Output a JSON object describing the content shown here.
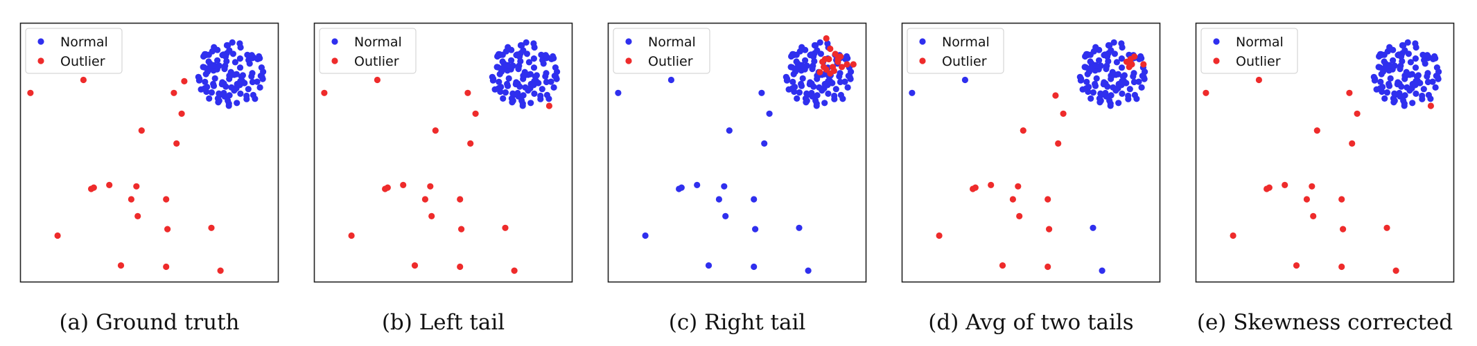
{
  "colors": {
    "normal": "#2f2fee",
    "outlier": "#ee2b2b",
    "frame": "#222222",
    "legend_border": "#cccccc"
  },
  "chart_data": [
    {
      "type": "scatter",
      "caption": "(a) Ground truth",
      "legend": [
        "Normal",
        "Outlier"
      ],
      "legend_position": "top-left",
      "xlim": [
        0,
        1
      ],
      "ylim": [
        0,
        1
      ],
      "axes_visible": false,
      "grid": false,
      "normal_cluster": {
        "center": [
          0.82,
          0.8
        ],
        "count": 110
      },
      "series": [
        {
          "name": "Outlier",
          "points": [
            [
              0.04,
              0.73
            ],
            [
              0.245,
              0.78
            ],
            [
              0.595,
              0.73
            ],
            [
              0.635,
              0.775
            ],
            [
              0.625,
              0.65
            ],
            [
              0.47,
              0.585
            ],
            [
              0.605,
              0.535
            ],
            [
              0.275,
              0.36
            ],
            [
              0.285,
              0.365
            ],
            [
              0.345,
              0.375
            ],
            [
              0.43,
              0.32
            ],
            [
              0.45,
              0.37
            ],
            [
              0.455,
              0.255
            ],
            [
              0.565,
              0.32
            ],
            [
              0.57,
              0.205
            ],
            [
              0.74,
              0.21
            ],
            [
              0.145,
              0.18
            ],
            [
              0.39,
              0.065
            ],
            [
              0.565,
              0.06
            ],
            [
              0.775,
              0.045
            ]
          ]
        }
      ]
    },
    {
      "type": "scatter",
      "caption": "(b) Left tail",
      "legend": [
        "Normal",
        "Outlier"
      ],
      "legend_position": "top-left",
      "xlim": [
        0,
        1
      ],
      "ylim": [
        0,
        1
      ],
      "axes_visible": false,
      "grid": false,
      "normal_cluster": {
        "center": [
          0.82,
          0.8
        ],
        "count": 110
      },
      "series": [
        {
          "name": "Outlier",
          "points": [
            [
              0.04,
              0.73
            ],
            [
              0.245,
              0.78
            ],
            [
              0.595,
              0.73
            ],
            [
              0.625,
              0.65
            ],
            [
              0.47,
              0.585
            ],
            [
              0.605,
              0.535
            ],
            [
              0.275,
              0.36
            ],
            [
              0.285,
              0.365
            ],
            [
              0.345,
              0.375
            ],
            [
              0.43,
              0.32
            ],
            [
              0.45,
              0.37
            ],
            [
              0.455,
              0.255
            ],
            [
              0.565,
              0.32
            ],
            [
              0.57,
              0.205
            ],
            [
              0.74,
              0.21
            ],
            [
              0.145,
              0.18
            ],
            [
              0.39,
              0.065
            ],
            [
              0.565,
              0.06
            ],
            [
              0.775,
              0.045
            ],
            [
              0.91,
              0.68
            ]
          ]
        }
      ]
    },
    {
      "type": "scatter",
      "caption": "(c) Right tail",
      "legend": [
        "Normal",
        "Outlier"
      ],
      "legend_position": "top-left",
      "xlim": [
        0,
        1
      ],
      "ylim": [
        0,
        1
      ],
      "axes_visible": false,
      "grid": false,
      "normal_cluster": {
        "center": [
          0.82,
          0.8
        ],
        "count": 110
      },
      "extra_normal": [
        [
          0.04,
          0.73
        ],
        [
          0.245,
          0.78
        ],
        [
          0.595,
          0.73
        ],
        [
          0.625,
          0.65
        ],
        [
          0.47,
          0.585
        ],
        [
          0.605,
          0.535
        ],
        [
          0.275,
          0.36
        ],
        [
          0.285,
          0.365
        ],
        [
          0.345,
          0.375
        ],
        [
          0.43,
          0.32
        ],
        [
          0.45,
          0.37
        ],
        [
          0.455,
          0.255
        ],
        [
          0.565,
          0.32
        ],
        [
          0.57,
          0.205
        ],
        [
          0.74,
          0.21
        ],
        [
          0.145,
          0.18
        ],
        [
          0.39,
          0.065
        ],
        [
          0.565,
          0.06
        ],
        [
          0.775,
          0.045
        ]
      ],
      "series": [
        {
          "name": "Outlier",
          "points": [
            [
              0.845,
              0.94
            ],
            [
              0.86,
              0.9
            ],
            [
              0.88,
              0.88
            ],
            [
              0.83,
              0.85
            ],
            [
              0.855,
              0.86
            ],
            [
              0.87,
              0.83
            ],
            [
              0.835,
              0.83
            ],
            [
              0.9,
              0.87
            ],
            [
              0.89,
              0.85
            ],
            [
              0.905,
              0.83
            ],
            [
              0.925,
              0.84
            ],
            [
              0.95,
              0.84
            ],
            [
              0.845,
              0.82
            ],
            [
              0.86,
              0.805
            ],
            [
              0.875,
              0.815
            ],
            [
              0.82,
              0.81
            ],
            [
              0.89,
              0.86
            ],
            [
              0.84,
              0.86
            ]
          ]
        }
      ]
    },
    {
      "type": "scatter",
      "caption": "(d) Avg of two tails",
      "legend": [
        "Normal",
        "Outlier"
      ],
      "legend_position": "top-left",
      "xlim": [
        0,
        1
      ],
      "ylim": [
        0,
        1
      ],
      "axes_visible": false,
      "grid": false,
      "normal_cluster": {
        "center": [
          0.82,
          0.8
        ],
        "count": 110
      },
      "extra_normal": [
        [
          0.04,
          0.73
        ],
        [
          0.245,
          0.78
        ],
        [
          0.74,
          0.21
        ],
        [
          0.775,
          0.045
        ]
      ],
      "series": [
        {
          "name": "Outlier",
          "points": [
            [
              0.595,
              0.72
            ],
            [
              0.625,
              0.65
            ],
            [
              0.47,
              0.585
            ],
            [
              0.605,
              0.535
            ],
            [
              0.275,
              0.36
            ],
            [
              0.285,
              0.365
            ],
            [
              0.345,
              0.375
            ],
            [
              0.43,
              0.32
            ],
            [
              0.45,
              0.37
            ],
            [
              0.455,
              0.255
            ],
            [
              0.565,
              0.32
            ],
            [
              0.57,
              0.205
            ],
            [
              0.145,
              0.18
            ],
            [
              0.39,
              0.065
            ],
            [
              0.565,
              0.06
            ],
            [
              0.87,
              0.85
            ],
            [
              0.88,
              0.83
            ],
            [
              0.885,
              0.86
            ],
            [
              0.89,
              0.84
            ],
            [
              0.9,
              0.87
            ],
            [
              0.935,
              0.84
            ]
          ]
        }
      ]
    },
    {
      "type": "scatter",
      "caption": "(e) Skewness corrected",
      "legend": [
        "Normal",
        "Outlier"
      ],
      "legend_position": "top-left",
      "xlim": [
        0,
        1
      ],
      "ylim": [
        0,
        1
      ],
      "axes_visible": false,
      "grid": false,
      "normal_cluster": {
        "center": [
          0.82,
          0.8
        ],
        "count": 110
      },
      "series": [
        {
          "name": "Outlier",
          "points": [
            [
              0.04,
              0.73
            ],
            [
              0.245,
              0.78
            ],
            [
              0.595,
              0.73
            ],
            [
              0.625,
              0.65
            ],
            [
              0.47,
              0.585
            ],
            [
              0.605,
              0.535
            ],
            [
              0.275,
              0.36
            ],
            [
              0.285,
              0.365
            ],
            [
              0.345,
              0.375
            ],
            [
              0.43,
              0.32
            ],
            [
              0.45,
              0.37
            ],
            [
              0.455,
              0.255
            ],
            [
              0.565,
              0.32
            ],
            [
              0.57,
              0.205
            ],
            [
              0.74,
              0.21
            ],
            [
              0.145,
              0.18
            ],
            [
              0.39,
              0.065
            ],
            [
              0.565,
              0.06
            ],
            [
              0.775,
              0.045
            ],
            [
              0.91,
              0.68
            ]
          ]
        }
      ]
    }
  ]
}
